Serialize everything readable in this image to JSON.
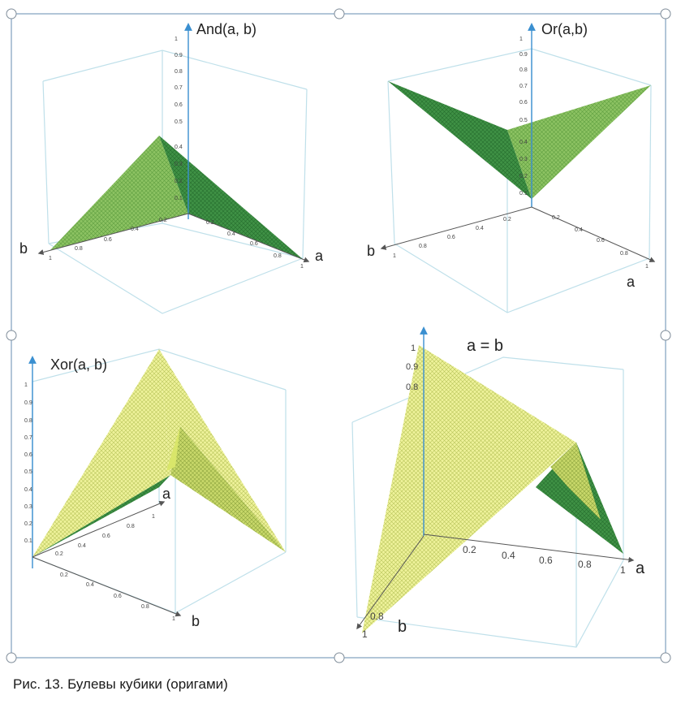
{
  "panels": [
    {
      "id": "and",
      "title": "And(a, b)",
      "axis_a": "a",
      "axis_b": "b",
      "z_ticks": [
        "0.1",
        "0.2",
        "0.3",
        "0.4",
        "0.5",
        "0.6",
        "0.7",
        "0.8",
        "0.9",
        "1"
      ],
      "a_ticks": [
        "0.2",
        "0.4",
        "0.6",
        "0.8",
        "1"
      ],
      "b_ticks": [
        "0.2",
        "0.4",
        "0.6",
        "0.8",
        "1"
      ]
    },
    {
      "id": "or",
      "title": "Or(a,b)",
      "axis_a": "a",
      "axis_b": "b",
      "z_ticks": [
        "0.1",
        "0.2",
        "0.3",
        "0.4",
        "0.5",
        "0.6",
        "0.7",
        "0.8",
        "0.9",
        "1"
      ],
      "a_ticks": [
        "0.2",
        "0.4",
        "0.6",
        "0.8",
        "1"
      ],
      "b_ticks": [
        "0.2",
        "0.4",
        "0.6",
        "0.8",
        "1"
      ]
    },
    {
      "id": "xor",
      "title": "Xor(a, b)",
      "axis_a": "a",
      "axis_b": "b",
      "z_ticks": [
        "0.1",
        "0.2",
        "0.3",
        "0.4",
        "0.5",
        "0.6",
        "0.7",
        "0.8",
        "0.9",
        "1"
      ],
      "a_ticks": [
        "0.2",
        "0.4",
        "0.6",
        "0.8",
        "1"
      ],
      "b_ticks": [
        "0.2",
        "0.4",
        "0.6",
        "0.8",
        "1"
      ]
    },
    {
      "id": "equal",
      "title": "a = b",
      "axis_a": "a",
      "axis_b": "b",
      "z_ticks": [
        "0.8",
        "0.9",
        "1"
      ],
      "a_ticks": [
        "0.2",
        "0.4",
        "0.6",
        "0.8",
        "1"
      ],
      "b_ticks": [
        "0.8",
        "1"
      ]
    }
  ],
  "caption": "Рис. 13. Булевы кубики (оригами)",
  "colors": {
    "frame": "#7f9fbf",
    "cube": "#bfe0ea",
    "axis": "#555555",
    "z_axis": "#3a8fd0",
    "green_dark": "#2f8a3a",
    "green_mid": "#5da34a",
    "green_light": "#a6cf72",
    "yellow": "#e6ec8a",
    "yellow_dark": "#c7d35a"
  }
}
